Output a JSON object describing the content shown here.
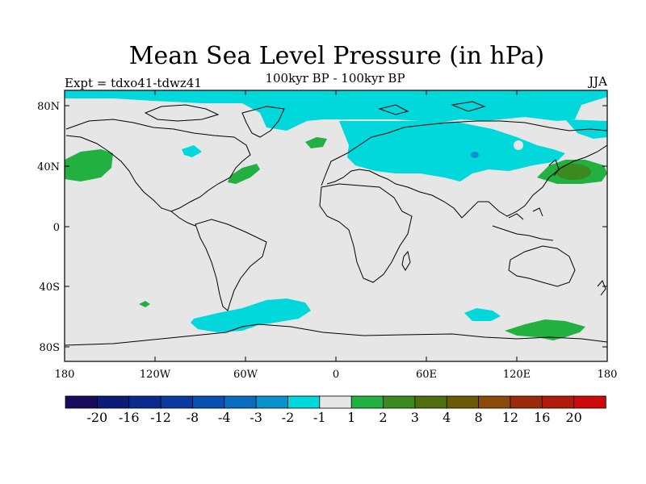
{
  "title": "Mean Sea Level Pressure (in hPa)",
  "experiment_label": "Expt = tdxo41-tdwz41",
  "period_label": "100kyr BP - 100kyr BP",
  "season_label": "JJA",
  "y_ticks": [
    "80N",
    "40N",
    "0",
    "40S",
    "80S"
  ],
  "x_ticks": [
    "180",
    "120W",
    "60W",
    "0",
    "60E",
    "120E",
    "180"
  ],
  "colorbar": {
    "colors": [
      "#1a0a5c",
      "#0c1a78",
      "#0b2a8e",
      "#0a3aa0",
      "#0a50b0",
      "#0a6cc0",
      "#0b92cc",
      "#00d8dc",
      "#e6e6e6",
      "#22b040",
      "#3a8a20",
      "#4e6e10",
      "#6a5a08",
      "#8a4a0a",
      "#9a2a0a",
      "#b01a0a",
      "#cc0a0a"
    ],
    "labels": [
      "-20",
      "-16",
      "-12",
      "-8",
      "-4",
      "-3",
      "-2",
      "-1",
      "1",
      "2",
      "3",
      "4",
      "8",
      "12",
      "16",
      "20"
    ]
  },
  "colors": {
    "background": "#e6e6e6",
    "neg_fill": "#00d8dc",
    "neg_strong": "#0b92cc",
    "pos_fill": "#22b040",
    "pos_strong": "#3a8a20"
  }
}
